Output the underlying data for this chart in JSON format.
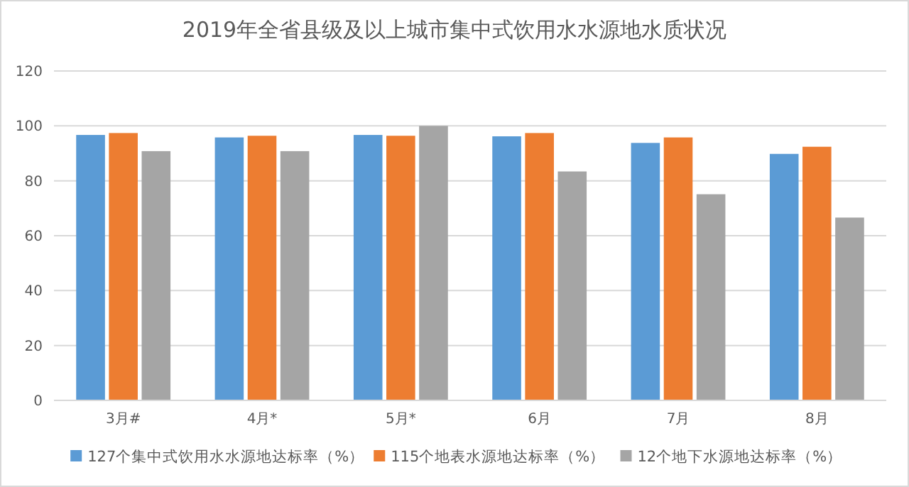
{
  "chart_data": {
    "type": "bar",
    "title": "2019年全省县级及以上城市集中式饮用水水源地水质状况",
    "categories": [
      "3月#",
      "4月*",
      "5月*",
      "6月",
      "7月",
      "8月"
    ],
    "series": [
      {
        "name": "127个集中式饮用水水源地达标率（%）",
        "color": "#5b9bd5",
        "values": [
          96.7,
          95.8,
          96.7,
          96.2,
          93.8,
          89.8
        ]
      },
      {
        "name": "115个地表水源地达标率（%）",
        "color": "#ed7d31",
        "values": [
          97.4,
          96.4,
          96.4,
          97.4,
          95.8,
          92.4
        ]
      },
      {
        "name": "12个地下水源地达标率（%）",
        "color": "#a5a5a5",
        "values": [
          90.8,
          90.8,
          100,
          83.4,
          75.1,
          66.6
        ]
      }
    ],
    "ylim": [
      0,
      120
    ],
    "yticks": [
      0,
      20,
      40,
      60,
      80,
      100,
      120
    ],
    "grid": "y",
    "legend": "bottom"
  }
}
